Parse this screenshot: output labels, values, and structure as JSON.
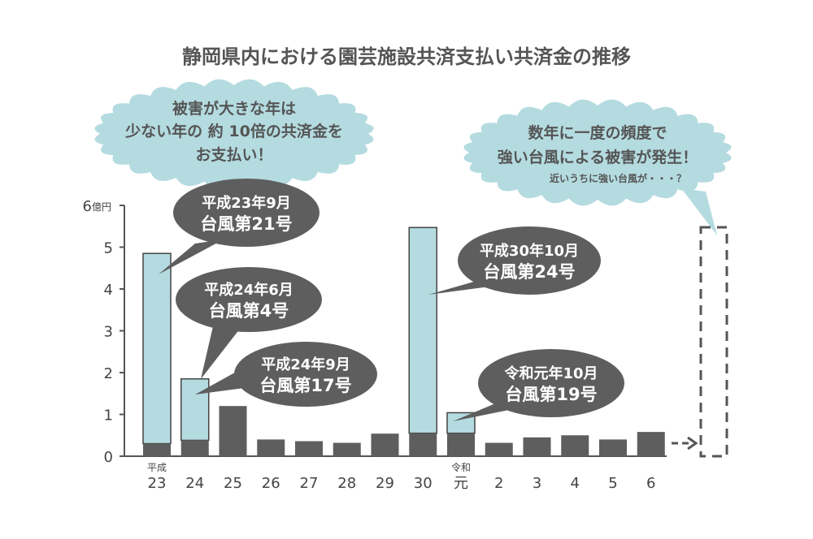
{
  "colors": {
    "bar_dark": "#5e5e5e",
    "bar_light": "#b4dbe0",
    "bar_border": "#444444",
    "cloud": "#b4dbe0",
    "bubble": "#5e5e5e",
    "text": "#555555"
  },
  "chart_data": {
    "type": "bar",
    "stacked": true,
    "title": "静岡県内における園芸施設共済支払い共済金の推移",
    "y_unit": "億円",
    "ylim": [
      0,
      6
    ],
    "yticks": [
      "0",
      "1",
      "2",
      "3",
      "4",
      "5",
      "6"
    ],
    "categories": [
      "23",
      "24",
      "25",
      "26",
      "27",
      "28",
      "29",
      "30",
      "元",
      "2",
      "3",
      "4",
      "5",
      "6"
    ],
    "era_labels": [
      {
        "category": "23",
        "text": "平成"
      },
      {
        "category": "元",
        "text": "令和"
      }
    ],
    "series": [
      {
        "values": [
          0.3,
          0.38,
          1.2,
          0.4,
          0.36,
          0.32,
          0.54,
          0.55,
          0.55,
          0.32,
          0.45,
          0.5,
          0.4,
          0.58
        ]
      },
      {
        "values": [
          4.55,
          1.47,
          0,
          0,
          0,
          0,
          0,
          4.92,
          0.49,
          0,
          0,
          0,
          0,
          0
        ]
      }
    ],
    "forecast": "dashed box with arrow after 6",
    "annotations": [
      {
        "category": "23",
        "lines": [
          "平成23年9月",
          "台風第21号"
        ]
      },
      {
        "category": "24",
        "lines": [
          "平成24年6月",
          "台風第4号"
        ]
      },
      {
        "category": "24",
        "lines": [
          "平成24年9月",
          "台風第17号"
        ]
      },
      {
        "category": "30",
        "lines": [
          "平成30年10月",
          "台風第24号"
        ]
      },
      {
        "category": "元",
        "lines": [
          "令和元年10月",
          "台風第19号"
        ]
      }
    ]
  },
  "clouds": {
    "left": {
      "lines": [
        "被害が大きな年は",
        "少ない年の 約 10倍の共済金を",
        "お支払い！"
      ]
    },
    "right": {
      "lines": [
        "数年に一度の頻度で",
        "強い台風による被害が発生！"
      ],
      "sub": "近いうちに強い台風が・・・？"
    }
  }
}
